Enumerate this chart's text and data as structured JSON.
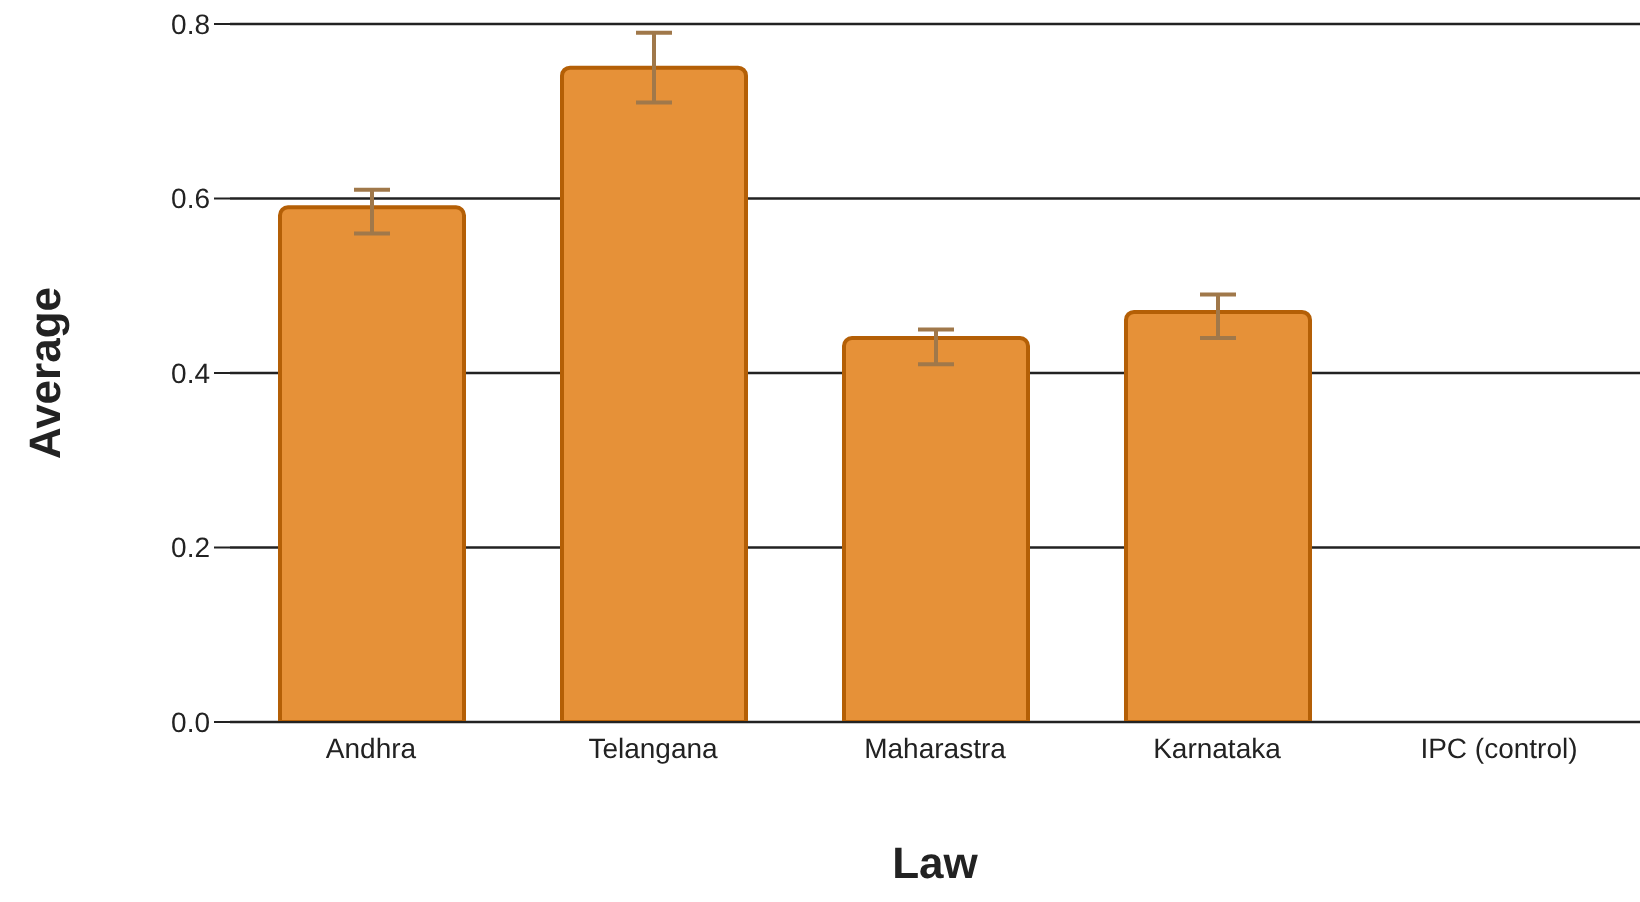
{
  "chart_data": {
    "type": "bar",
    "xlabel": "Law",
    "ylabel": "Average",
    "categories": [
      "Andhra",
      "Telangana",
      "Maharastra",
      "Karnataka",
      "IPC (control)"
    ],
    "values": [
      0.59,
      0.75,
      0.44,
      0.47,
      null
    ],
    "errors": [
      [
        0.56,
        0.61
      ],
      [
        0.71,
        0.79
      ],
      [
        0.41,
        0.45
      ],
      [
        0.44,
        0.49
      ],
      null
    ],
    "color": "#e69138",
    "ylim": [
      0,
      0.8
    ],
    "yticks": [
      {
        "value": 0,
        "label": "0.0"
      },
      0.2,
      0.4,
      0.6,
      0.8
    ],
    "grid": "y",
    "legend": false
  }
}
